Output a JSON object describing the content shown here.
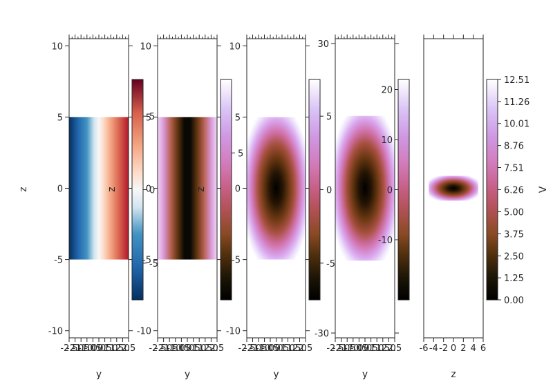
{
  "chart_data": [
    {
      "type": "heatmap",
      "title": "",
      "xlabel": "y",
      "ylabel": "z",
      "xlim": [
        -2.5,
        2.5
      ],
      "ylim": [
        -10.5,
        10.5
      ],
      "xticks": [
        "-2.5",
        "-2.0",
        "-1.5",
        "-1.0",
        "-0.5",
        "0.0",
        "0.5",
        "1.0",
        "1.5",
        "2.0",
        "2.5"
      ],
      "yticks": [
        "-10",
        "-5",
        "0",
        "5",
        "10"
      ],
      "data_extent": {
        "x": [
          -2.5,
          2.5
        ],
        "y": [
          -5,
          5
        ]
      },
      "pattern": "linear-in-y",
      "colormap": "RdBu_r",
      "colorbar": {
        "ticks": [
          "-5",
          "0",
          "5"
        ],
        "range": [
          -7.5,
          7.5
        ],
        "label": ""
      }
    },
    {
      "type": "heatmap",
      "title": "",
      "xlabel": "y",
      "ylabel": "z",
      "xlim": [
        -2.5,
        2.5
      ],
      "ylim": [
        -10.5,
        10.5
      ],
      "xticks": [
        "-2.5",
        "-2.0",
        "-1.5",
        "-1.0",
        "-0.5",
        "0.0",
        "0.5",
        "1.0",
        "1.5",
        "2.0",
        "2.5"
      ],
      "yticks": [
        "-10",
        "-5",
        "0",
        "5",
        "10"
      ],
      "data_extent": {
        "x": [
          -2.5,
          2.5
        ],
        "y": [
          -5,
          5
        ]
      },
      "pattern": "abs-y",
      "colormap": "cubehelix",
      "colorbar": {
        "ticks": [
          "5"
        ],
        "range": [
          0,
          7.5
        ],
        "label": ""
      }
    },
    {
      "type": "heatmap",
      "title": "",
      "xlabel": "y",
      "ylabel": "z",
      "xlim": [
        -2.5,
        2.5
      ],
      "ylim": [
        -10.5,
        10.5
      ],
      "xticks": [
        "-2.5",
        "-2.0",
        "-1.5",
        "-1.0",
        "-0.5",
        "0.0",
        "0.5",
        "1.0",
        "1.5",
        "2.0",
        "2.5"
      ],
      "yticks": [
        "-10",
        "-5",
        "0",
        "5",
        "10"
      ],
      "data_extent": {
        "x": [
          -2.5,
          2.5
        ],
        "y": [
          -5,
          5
        ]
      },
      "pattern": "radial",
      "colormap": "cubehelix",
      "colorbar": {
        "ticks": [
          "-5",
          "0",
          "5"
        ],
        "range": [
          -7.5,
          7.5
        ],
        "label": ""
      }
    },
    {
      "type": "heatmap",
      "title": "",
      "xlabel": "y",
      "ylabel": "",
      "xlim": [
        -2.5,
        2.5
      ],
      "ylim": [
        -31,
        31
      ],
      "xticks": [
        "-2.5",
        "-2.0",
        "-1.5",
        "-1.0",
        "-0.5",
        "0.0",
        "0.5",
        "1.0",
        "1.5",
        "2.0",
        "2.5"
      ],
      "yticks": [
        "-30",
        "30"
      ],
      "data_extent": {
        "x": [
          -2.5,
          2.5
        ],
        "y": [
          -15,
          15
        ]
      },
      "pattern": "radial",
      "colormap": "cubehelix",
      "colorbar": {
        "ticks": [
          "-10",
          "0",
          "10",
          "20"
        ],
        "range": [
          -22,
          22
        ],
        "label": ""
      }
    },
    {
      "type": "heatmap",
      "title": "",
      "xlabel": "z",
      "ylabel": "",
      "xlim": [
        -6,
        6
      ],
      "ylim": [
        -30,
        30
      ],
      "xticks": [
        "-6",
        "-4",
        "-2",
        "0",
        "2",
        "4",
        "6"
      ],
      "yticks": [],
      "data_extent": {
        "x": [
          -5,
          5
        ],
        "y": [
          -2.5,
          2.5
        ]
      },
      "pattern": "radial",
      "colormap": "cubehelix",
      "colorbar": {
        "ticks": [
          "0.00",
          "1.25",
          "2.50",
          "3.75",
          "5.00",
          "6.26",
          "7.51",
          "8.76",
          "10.01",
          "11.26",
          "12.51"
        ],
        "range": [
          0,
          12.51
        ],
        "label": "V"
      }
    }
  ]
}
